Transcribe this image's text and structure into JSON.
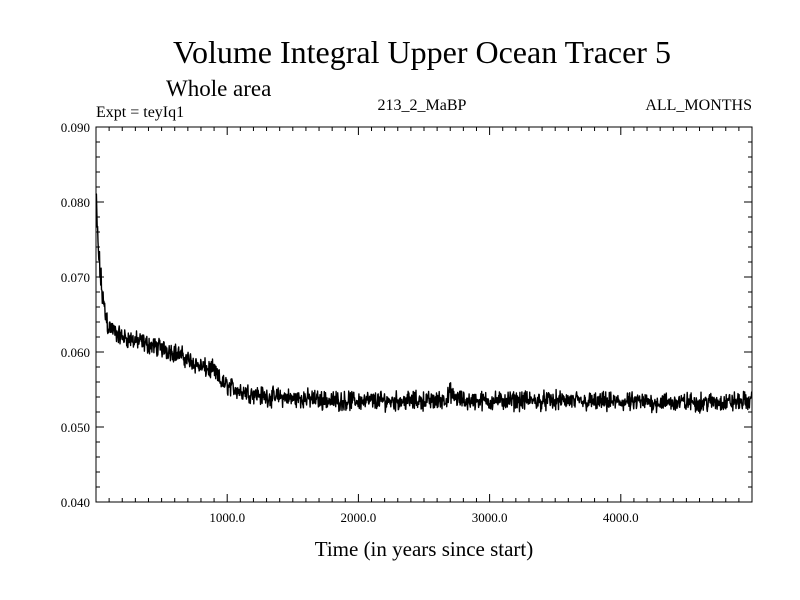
{
  "chart_data": {
    "type": "line",
    "title": "Volume Integral Upper Ocean Tracer 5",
    "subtitle": "Whole area",
    "left_label": "Expt = teyIq1",
    "center_label": "213_2_MaBP",
    "right_label": "ALL_MONTHS",
    "xlabel": "Time (in years since start)",
    "ylabel": "",
    "xlim": [
      0,
      5000
    ],
    "ylim": [
      0.04,
      0.09
    ],
    "xticks": [
      1000,
      2000,
      3000,
      4000
    ],
    "xtick_labels": [
      "1000.0",
      "2000.0",
      "3000.0",
      "4000.0"
    ],
    "yticks": [
      0.04,
      0.05,
      0.06,
      0.07,
      0.08,
      0.09
    ],
    "ytick_labels": [
      "0.040",
      "0.050",
      "0.060",
      "0.070",
      "0.080",
      "0.090"
    ],
    "series": [
      {
        "name": "teyIq1",
        "color": "#000000",
        "x": [
          0,
          10,
          20,
          40,
          60,
          80,
          100,
          150,
          200,
          300,
          400,
          500,
          600,
          700,
          800,
          900,
          950,
          1000,
          1100,
          1200,
          1300,
          1400,
          1500,
          1600,
          1800,
          2000,
          2200,
          2400,
          2600,
          2680,
          2700,
          2720,
          2800,
          3000,
          3200,
          3400,
          3600,
          3800,
          4000,
          4200,
          4400,
          4600,
          4800,
          5000
        ],
        "values": [
          0.081,
          0.076,
          0.073,
          0.069,
          0.066,
          0.0645,
          0.0635,
          0.0625,
          0.062,
          0.0615,
          0.061,
          0.0605,
          0.06,
          0.059,
          0.058,
          0.0575,
          0.056,
          0.0555,
          0.0548,
          0.0545,
          0.054,
          0.054,
          0.0538,
          0.0538,
          0.0535,
          0.0535,
          0.0535,
          0.0535,
          0.0535,
          0.0538,
          0.0548,
          0.054,
          0.0535,
          0.0535,
          0.0535,
          0.0535,
          0.0535,
          0.0533,
          0.0533,
          0.0533,
          0.0533,
          0.0533,
          0.0533,
          0.0535
        ],
        "noise_amplitude": 0.0012
      }
    ]
  }
}
